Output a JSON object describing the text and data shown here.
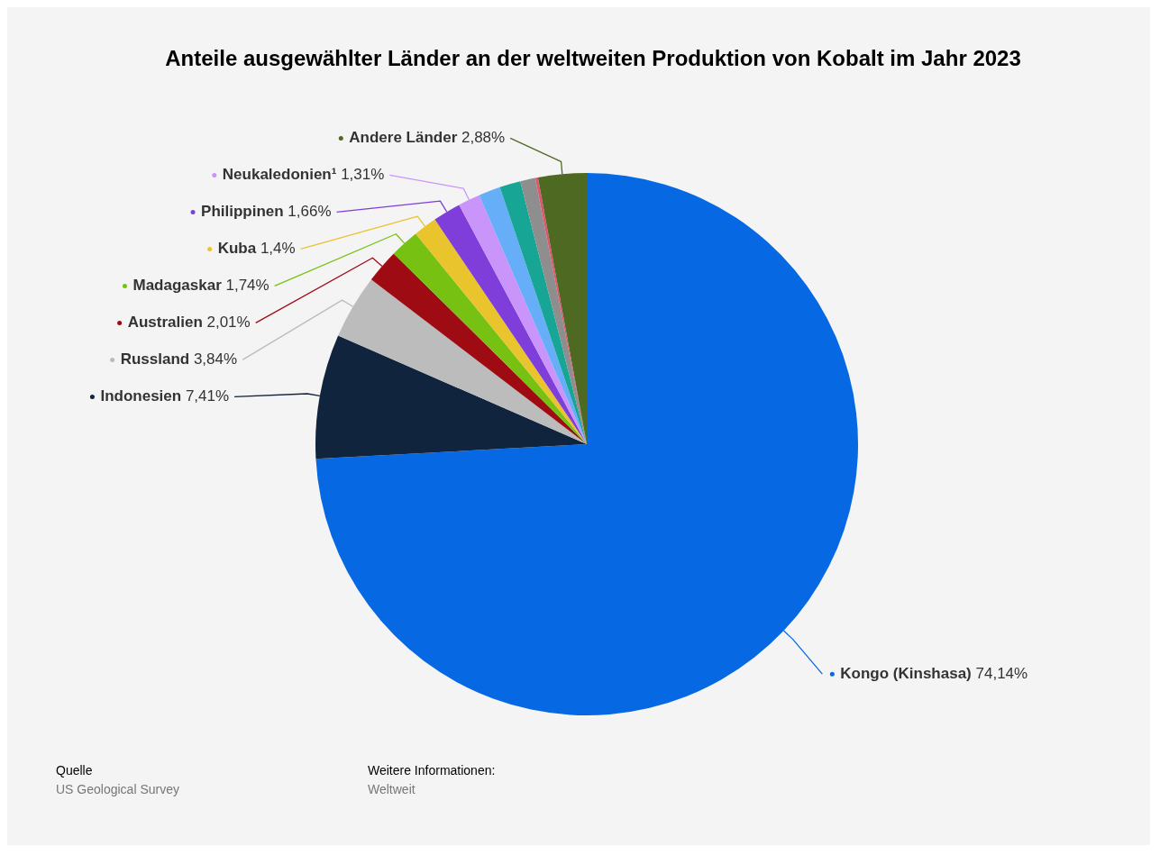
{
  "chart_data": {
    "type": "pie",
    "title": "Anteile ausgewählter Länder an der weltweiten Produktion von Kobalt im Jahr 2023",
    "categories": [
      "Kongo (Kinshasa)",
      "Indonesien",
      "Russland",
      "Australien",
      "Madagaskar",
      "Kuba",
      "Philippinen",
      "Neukaledonien¹",
      null,
      null,
      null,
      null,
      "Andere Länder"
    ],
    "values": [
      74.14,
      7.41,
      3.84,
      2.01,
      1.74,
      1.4,
      1.66,
      1.31,
      1.3,
      1.25,
      0.9,
      0.16,
      2.88
    ],
    "value_labels": [
      "74,14%",
      "7,41%",
      "3,84%",
      "2,01%",
      "1,74%",
      "1,4%",
      "1,66%",
      "1,31%",
      null,
      null,
      null,
      null,
      "2,88%"
    ],
    "colors": [
      "#0768e4",
      "#10243e",
      "#bcbcbc",
      "#9e0b12",
      "#76c112",
      "#e9c42d",
      "#7f3ed9",
      "#c995fb",
      "#66aef8",
      "#17a596",
      "#8e8e8e",
      "#e0546e",
      "#4e6a22"
    ],
    "legend": false,
    "annotations": [
      "Quelle",
      "US Geological Survey",
      "Weitere Informationen:",
      "Weltweit"
    ]
  }
}
